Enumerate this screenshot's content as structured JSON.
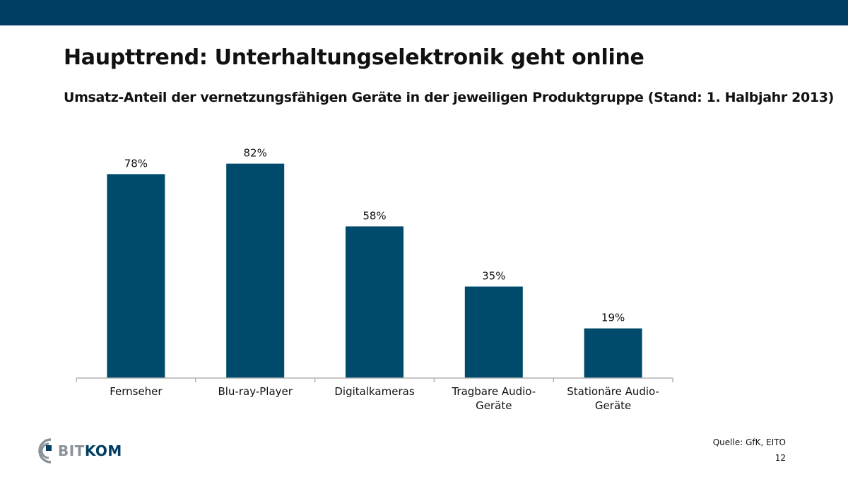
{
  "slide": {
    "title": "Haupttrend: Unterhaltungselektronik geht online",
    "subtitle": "Umsatz-Anteil der vernetzungsfähigen Geräte in der jeweiligen Produktgruppe (Stand: 1. Halbjahr 2013)",
    "source": "Quelle: GfK, EITO",
    "page_number": "12",
    "logo": {
      "text_part1": "BIT",
      "text_part2": "KOM",
      "icon": "bitkom-logo-icon"
    }
  },
  "colors": {
    "top_bar": "#003f63",
    "bar": "#004a6b",
    "axis": "#b3b3b3",
    "text": "#111111",
    "logo_gray": "#8a9299",
    "logo_blue": "#003f63"
  },
  "chart_data": {
    "type": "bar",
    "title": "",
    "xlabel": "",
    "ylabel": "",
    "categories": [
      [
        "Fernseher"
      ],
      [
        "Blu-ray-Player"
      ],
      [
        "Digitalkameras"
      ],
      [
        "Tragbare Audio-",
        "Geräte"
      ],
      [
        "Stationäre Audio-",
        "Geräte"
      ]
    ],
    "values": [
      78,
      82,
      58,
      35,
      19
    ],
    "value_labels": [
      "78%",
      "82%",
      "58%",
      "35%",
      "19%"
    ],
    "ylim": [
      0,
      100
    ],
    "grid": false,
    "legend": "none"
  }
}
